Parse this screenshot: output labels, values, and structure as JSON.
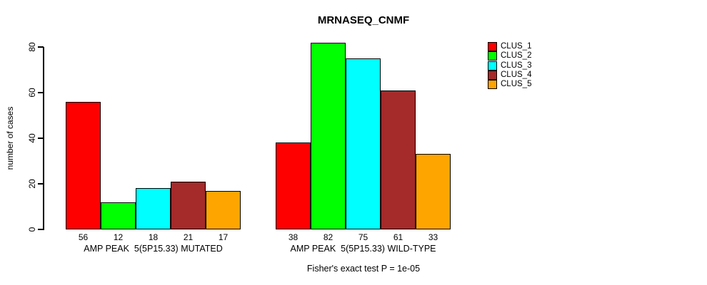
{
  "chart_data": {
    "type": "bar",
    "title": "MRNASEQ_CNMF",
    "ylabel": "number of cases",
    "ylim": [
      0,
      80
    ],
    "yticks": [
      0,
      20,
      40,
      60,
      80
    ],
    "grid": false,
    "legend_position": "right",
    "categories": [
      "AMP PEAK  5(5P15.33) MUTATED",
      "AMP PEAK  5(5P15.33) WILD-TYPE"
    ],
    "series": [
      {
        "name": "CLUS_1",
        "color": "#ff0000",
        "values": [
          56,
          38
        ]
      },
      {
        "name": "CLUS_2",
        "color": "#00ff00",
        "values": [
          12,
          82
        ]
      },
      {
        "name": "CLUS_3",
        "color": "#00ffff",
        "values": [
          18,
          75
        ]
      },
      {
        "name": "CLUS_4",
        "color": "#a52a2a",
        "values": [
          21,
          61
        ]
      },
      {
        "name": "CLUS_5",
        "color": "#ffa500",
        "values": [
          17,
          33
        ]
      }
    ],
    "bar_value_labels": [
      [
        56,
        12,
        18,
        21,
        17
      ],
      [
        38,
        82,
        75,
        61,
        33
      ]
    ],
    "footnote": "Fisher's exact test P = 1e-05"
  }
}
